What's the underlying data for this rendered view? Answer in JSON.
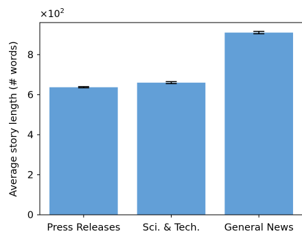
{
  "chart_data": {
    "type": "bar",
    "categories": [
      "Press Releases",
      "Sci. & Tech.",
      "General News"
    ],
    "values": [
      637,
      660,
      910
    ],
    "errors": [
      3,
      5,
      6
    ],
    "ylabel": "Average story length (# words)",
    "scale_label_base": "×10",
    "scale_label_exp": "2",
    "ylim": [
      0,
      960
    ],
    "yticks": [
      0,
      200,
      400,
      600,
      800
    ],
    "ytick_labels": [
      "0",
      "2",
      "4",
      "6",
      "8"
    ],
    "bar_color": "#629fd7",
    "error_color": "#000000",
    "grid": false,
    "legend": "none"
  }
}
